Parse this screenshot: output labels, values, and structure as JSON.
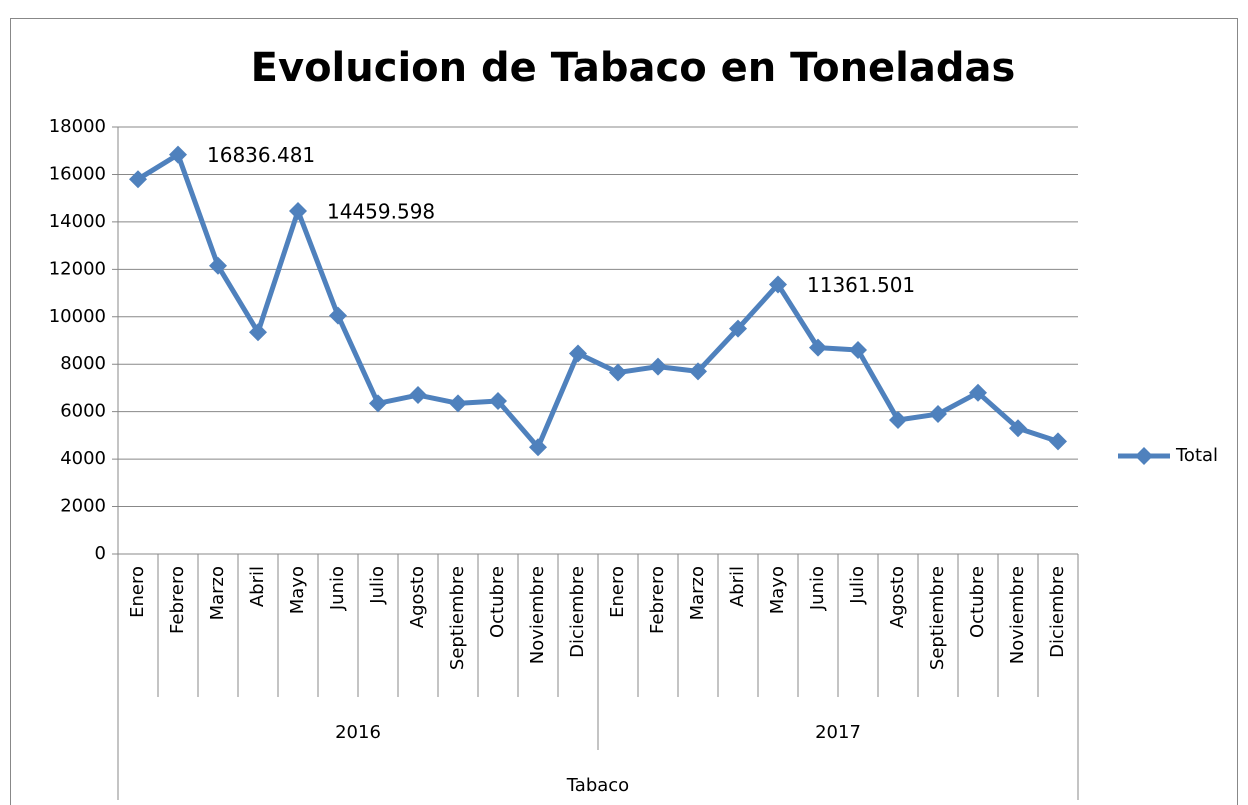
{
  "chart_data": {
    "type": "line",
    "title": "Evolucion de Tabaco en Toneladas",
    "x_label": "Tabaco",
    "categories": [
      "Enero",
      "Febrero",
      "Marzo",
      "Abril",
      "Mayo",
      "Junio",
      "Julio",
      "Agosto",
      "Septiembre",
      "Octubre",
      "Noviembre",
      "Diciembre",
      "Enero",
      "Febrero",
      "Marzo",
      "Abril",
      "Mayo",
      "Junio",
      "Julio",
      "Agosto",
      "Septiembre",
      "Octubre",
      "Noviembre",
      "Diciembre"
    ],
    "groups": [
      "2016",
      "2017"
    ],
    "series": [
      {
        "name": "Total",
        "color": "#4f81bd",
        "values": [
          15800,
          16836.481,
          12150,
          9350,
          14459.598,
          10050,
          6350,
          6700,
          6350,
          6450,
          4500,
          8450,
          7650,
          7900,
          7700,
          9500,
          11361.501,
          8700,
          8600,
          5650,
          5900,
          6800,
          5300,
          4750
        ],
        "value_labels": [
          null,
          "16836.481",
          null,
          null,
          "14459.598",
          null,
          null,
          null,
          null,
          null,
          null,
          null,
          null,
          null,
          null,
          null,
          "11361.501",
          null,
          null,
          null,
          null,
          null,
          null,
          null
        ]
      }
    ],
    "ylim": [
      0,
      18000
    ],
    "yticks": [
      0,
      2000,
      4000,
      6000,
      8000,
      10000,
      12000,
      14000,
      16000,
      18000
    ],
    "grid": true,
    "legend": "right"
  }
}
